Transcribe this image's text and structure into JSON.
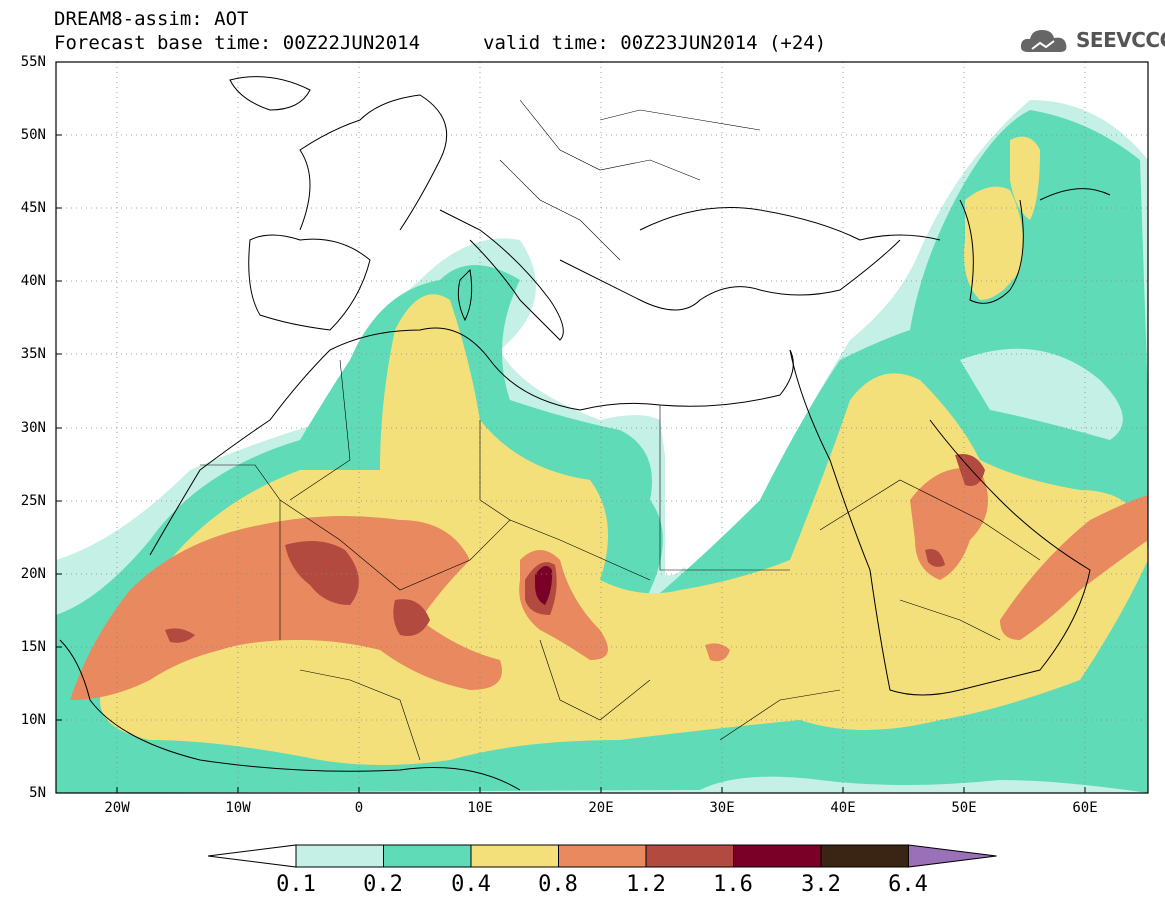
{
  "header": {
    "line1": "DREAM8-assim: AOT",
    "line2": "Forecast base time: 00Z22JUN2014",
    "valid": "valid time: 00Z23JUN2014 (+24)"
  },
  "logo": {
    "text": "SEEVCCC",
    "icon": "cloud-icon",
    "color": "#555555"
  },
  "map": {
    "lat_labels": [
      "55N",
      "50N",
      "45N",
      "40N",
      "35N",
      "30N",
      "25N",
      "20N",
      "15N",
      "10N",
      "5N"
    ],
    "lon_labels": [
      "20W",
      "10W",
      "0",
      "10E",
      "20E",
      "30E",
      "40E",
      "50E",
      "60E"
    ]
  },
  "colorbar": {
    "labels": [
      "0.1",
      "0.2",
      "0.4",
      "0.8",
      "1.2",
      "1.6",
      "3.2",
      "6.4"
    ],
    "colors": [
      "#ffffff",
      "#c5f0e6",
      "#5fdcb7",
      "#f4e07a",
      "#e8895f",
      "#b24a3f",
      "#7b0027",
      "#3a2413",
      "#9a70b8"
    ]
  }
}
